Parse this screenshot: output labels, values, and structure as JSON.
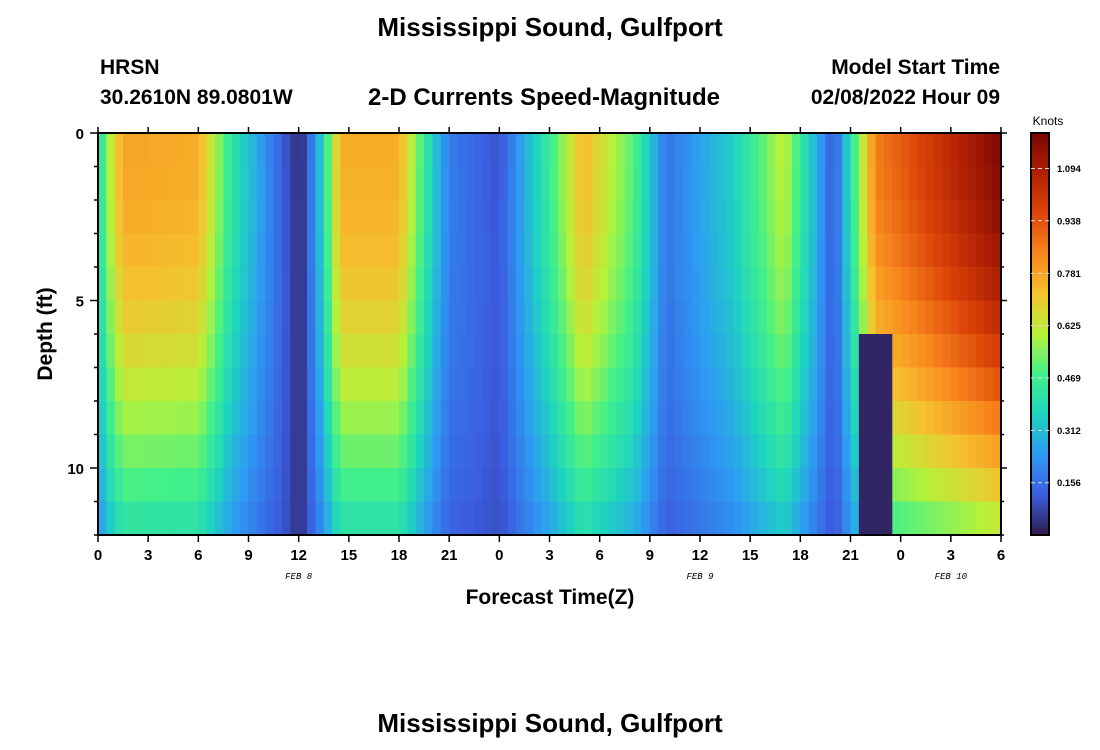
{
  "header": {
    "title": "Mississippi Sound, Gulfport",
    "station_id": "HRSN",
    "station_coords": "30.2610N  89.0801W",
    "subtitle": "2-D Currents Speed-Magnitude",
    "model_start_label": "Model Start Time",
    "model_start_value": "02/08/2022 Hour 09"
  },
  "footer": {
    "title": "Mississippi Sound, Gulfport"
  },
  "chart_data": {
    "type": "heatmap",
    "title": "2-D Currents Speed-Magnitude",
    "xlabel": "Forecast Time(Z)",
    "ylabel": "Depth (ft)",
    "x_tick_labels": [
      "0",
      "3",
      "6",
      "9",
      "12",
      "15",
      "18",
      "21",
      "0",
      "3",
      "6",
      "9",
      "12",
      "15",
      "18",
      "21",
      "0",
      "3",
      "6"
    ],
    "x_range_hours": [
      0,
      54
    ],
    "date_labels": [
      {
        "text": "FEB 8",
        "at_hour": 12
      },
      {
        "text": "FEB 9",
        "at_hour": 36
      },
      {
        "text": "FEB 10",
        "at_hour": 51
      }
    ],
    "y_tick_labels": [
      "0",
      "5",
      "10"
    ],
    "y_range_ft": [
      0,
      12
    ],
    "y_inverted": true,
    "colorbar": {
      "label": "Knots",
      "tick_labels": [
        "1.094",
        "0.938",
        "0.781",
        "0.625",
        "0.469",
        "0.312",
        "0.156"
      ],
      "tick_values": [
        1.094,
        0.938,
        0.781,
        0.625,
        0.469,
        0.312,
        0.156
      ],
      "range": [
        0,
        1.2
      ],
      "colormap": [
        "#2f1a4a",
        "#3b5de0",
        "#2e9af3",
        "#1ed4c0",
        "#42f08a",
        "#b5f23a",
        "#f5c22e",
        "#f8861d",
        "#dc4508",
        "#b02004",
        "#7a0402"
      ]
    },
    "grid": false,
    "speed_profile_at_surface_knots": [
      {
        "hour": 0,
        "v": 0.35
      },
      {
        "hour": 0.5,
        "v": 0.55
      },
      {
        "hour": 1.5,
        "v": 0.78
      },
      {
        "hour": 6,
        "v": 0.76
      },
      {
        "hour": 8,
        "v": 0.42
      },
      {
        "hour": 10,
        "v": 0.22
      },
      {
        "hour": 12,
        "v": 0.03
      },
      {
        "hour": 13,
        "v": 0.22
      },
      {
        "hour": 14.5,
        "v": 0.76
      },
      {
        "hour": 18,
        "v": 0.76
      },
      {
        "hour": 20,
        "v": 0.35
      },
      {
        "hour": 21,
        "v": 0.18
      },
      {
        "hour": 24,
        "v": 0.1
      },
      {
        "hour": 27,
        "v": 0.45
      },
      {
        "hour": 29,
        "v": 0.74
      },
      {
        "hour": 32,
        "v": 0.5
      },
      {
        "hour": 34,
        "v": 0.16
      },
      {
        "hour": 38,
        "v": 0.35
      },
      {
        "hour": 41,
        "v": 0.62
      },
      {
        "hour": 44,
        "v": 0.1
      },
      {
        "hour": 46.5,
        "v": 0.85
      },
      {
        "hour": 54,
        "v": 1.18
      }
    ]
  }
}
